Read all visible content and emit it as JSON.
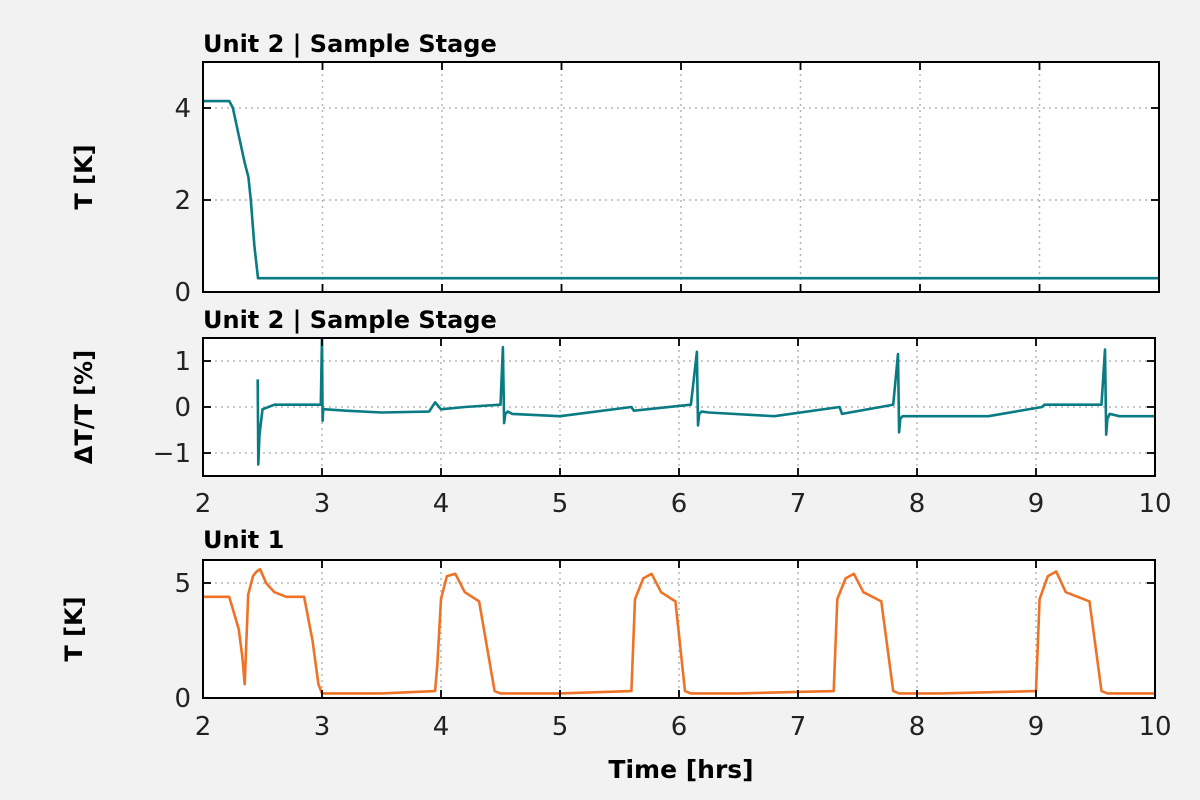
{
  "chart_data": [
    {
      "type": "line",
      "title": "Unit 2 | Sample Stage",
      "ylabel": "T [K]",
      "xlabel": "",
      "xlim": [
        2,
        10
      ],
      "ylim": [
        0,
        5
      ],
      "x_ticks": [
        2,
        3,
        4,
        5,
        6,
        7,
        8,
        9,
        10
      ],
      "y_ticks": [
        0,
        2,
        4
      ],
      "y_tick_labels": [
        "0",
        "2",
        "4"
      ],
      "show_x_tick_labels": false,
      "grid": true,
      "color": "#0a7b83",
      "series": [
        {
          "x": [
            2.0,
            2.1,
            2.22,
            2.25,
            2.3,
            2.35,
            2.38,
            2.4,
            2.43,
            2.46,
            2.5,
            3.0,
            4.0,
            5.0,
            6.0,
            7.0,
            8.0,
            9.0,
            10.0
          ],
          "y": [
            4.15,
            4.15,
            4.15,
            4.0,
            3.4,
            2.8,
            2.5,
            2.0,
            1.0,
            0.3,
            0.3,
            0.3,
            0.3,
            0.3,
            0.3,
            0.3,
            0.3,
            0.3,
            0.3
          ]
        }
      ]
    },
    {
      "type": "line",
      "title": "Unit 2 | Sample Stage",
      "ylabel": "ΔT/T [%]",
      "xlabel": "",
      "xlim": [
        2,
        10
      ],
      "ylim": [
        -1.5,
        1.5
      ],
      "x_ticks": [
        2,
        3,
        4,
        5,
        6,
        7,
        8,
        9,
        10
      ],
      "x_tick_labels": [
        "2",
        "3",
        "4",
        "5",
        "6",
        "7",
        "8",
        "9",
        "10"
      ],
      "y_ticks": [
        -1,
        0,
        1
      ],
      "y_tick_labels": [
        "−1",
        "0",
        "1"
      ],
      "show_x_tick_labels": true,
      "grid": true,
      "color": "#0a7b83",
      "series": [
        {
          "x": [
            2.46,
            2.465,
            2.475,
            2.5,
            2.6,
            2.8,
            2.99,
            3.0,
            3.005,
            3.01,
            3.03,
            3.2,
            3.5,
            3.9,
            3.95,
            4.0,
            4.2,
            4.5,
            4.52,
            4.53,
            4.54,
            4.56,
            4.6,
            5.0,
            5.6,
            5.62,
            6.1,
            6.15,
            6.16,
            6.17,
            6.19,
            6.25,
            6.8,
            7.35,
            7.37,
            7.8,
            7.84,
            7.85,
            7.86,
            7.88,
            8.0,
            8.6,
            9.05,
            9.07,
            9.55,
            9.58,
            9.59,
            9.6,
            9.62,
            9.7,
            10.0
          ],
          "y": [
            0.6,
            -1.25,
            -0.6,
            -0.05,
            0.05,
            0.05,
            0.05,
            1.55,
            -0.3,
            -0.05,
            -0.05,
            -0.08,
            -0.12,
            -0.1,
            0.1,
            -0.05,
            0.0,
            0.05,
            1.3,
            -0.35,
            -0.15,
            -0.1,
            -0.15,
            -0.2,
            0.0,
            -0.08,
            0.05,
            1.2,
            -0.4,
            -0.15,
            -0.1,
            -0.12,
            -0.2,
            0.0,
            -0.15,
            0.05,
            1.15,
            -0.55,
            -0.25,
            -0.2,
            -0.2,
            -0.2,
            0.0,
            0.05,
            0.05,
            1.25,
            -0.6,
            -0.25,
            -0.15,
            -0.2,
            -0.2
          ]
        }
      ]
    },
    {
      "type": "line",
      "title": "Unit 1",
      "ylabel": "T [K]",
      "xlabel": "Time [hrs]",
      "xlim": [
        2,
        10
      ],
      "ylim": [
        0,
        6
      ],
      "x_ticks": [
        2,
        3,
        4,
        5,
        6,
        7,
        8,
        9,
        10
      ],
      "x_tick_labels": [
        "2",
        "3",
        "4",
        "5",
        "6",
        "7",
        "8",
        "9",
        "10"
      ],
      "y_ticks": [
        0,
        5
      ],
      "y_tick_labels": [
        "0",
        "5"
      ],
      "show_x_tick_labels": true,
      "grid": true,
      "color": "#ee7326",
      "series": [
        {
          "x": [
            2.0,
            2.22,
            2.3,
            2.33,
            2.35,
            2.38,
            2.42,
            2.45,
            2.48,
            2.53,
            2.6,
            2.7,
            2.85,
            2.92,
            2.97,
            3.0,
            3.1,
            3.5,
            3.95,
            3.97,
            4.0,
            4.05,
            4.12,
            4.2,
            4.32,
            4.45,
            4.5,
            5.0,
            5.6,
            5.63,
            5.7,
            5.77,
            5.85,
            5.97,
            6.05,
            6.1,
            6.5,
            7.3,
            7.33,
            7.4,
            7.47,
            7.55,
            7.7,
            7.8,
            7.85,
            8.2,
            9.0,
            9.03,
            9.1,
            9.17,
            9.25,
            9.45,
            9.55,
            9.6,
            10.0
          ],
          "y": [
            4.4,
            4.4,
            3.0,
            1.8,
            0.6,
            4.5,
            5.3,
            5.5,
            5.6,
            5.0,
            4.6,
            4.4,
            4.4,
            2.5,
            0.6,
            0.2,
            0.2,
            0.2,
            0.3,
            1.5,
            4.3,
            5.3,
            5.4,
            4.6,
            4.2,
            0.3,
            0.2,
            0.2,
            0.3,
            4.3,
            5.2,
            5.4,
            4.6,
            4.2,
            0.3,
            0.2,
            0.2,
            0.3,
            4.3,
            5.2,
            5.4,
            4.6,
            4.2,
            0.3,
            0.2,
            0.2,
            0.3,
            4.3,
            5.3,
            5.5,
            4.6,
            4.2,
            0.3,
            0.2,
            0.2
          ]
        }
      ]
    }
  ]
}
